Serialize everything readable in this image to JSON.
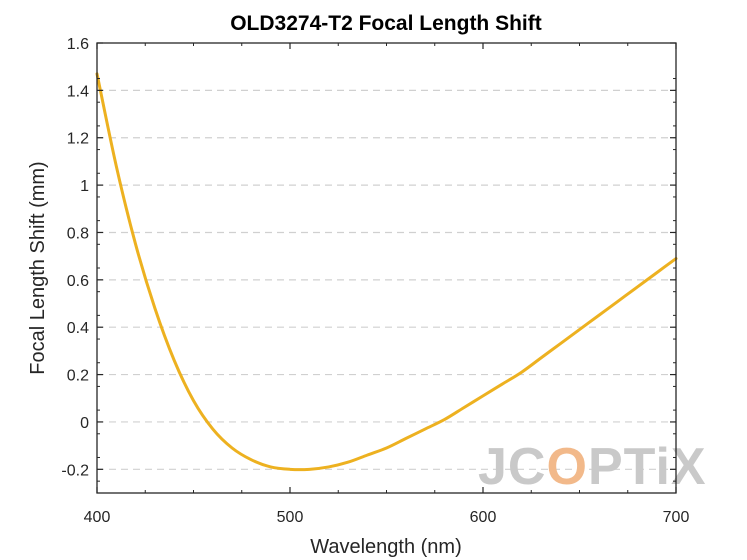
{
  "chart_data": {
    "type": "line",
    "title": "OLD3274-T2 Focal Length Shift",
    "xlabel": "Wavelength (nm)",
    "ylabel": "Focal Length Shift (mm)",
    "xlim": [
      400,
      700
    ],
    "ylim": [
      -0.3,
      1.6
    ],
    "x_ticks": [
      400,
      500,
      600,
      700
    ],
    "x_tick_labels": [
      "400",
      "500",
      "600",
      "700"
    ],
    "y_ticks": [
      -0.2,
      0,
      0.2,
      0.4,
      0.6,
      0.8,
      1,
      1.2,
      1.4,
      1.6
    ],
    "y_tick_labels": [
      "-0.2",
      "0",
      "0.2",
      "0.4",
      "0.6",
      "0.8",
      "1",
      "1.2",
      "1.4",
      "1.6"
    ],
    "grid": "horizontal-dashed",
    "series": [
      {
        "color": "#EDB120",
        "x": [
          400,
          410,
          420,
          430,
          440,
          450,
          460,
          470,
          480,
          490,
          500,
          510,
          520,
          530,
          540,
          550,
          560,
          570,
          580,
          590,
          600,
          610,
          620,
          630,
          640,
          650,
          660,
          670,
          680,
          690,
          700
        ],
        "y": [
          1.47,
          1.08,
          0.75,
          0.48,
          0.26,
          0.09,
          -0.03,
          -0.11,
          -0.16,
          -0.19,
          -0.2,
          -0.2,
          -0.19,
          -0.17,
          -0.14,
          -0.11,
          -0.07,
          -0.03,
          0.01,
          0.06,
          0.11,
          0.16,
          0.21,
          0.27,
          0.33,
          0.39,
          0.45,
          0.51,
          0.57,
          0.63,
          0.69
        ]
      }
    ]
  },
  "watermark": {
    "text_parts": [
      "JC",
      "O",
      "PTiX"
    ],
    "color": "#c9c9c9",
    "accent_color": "#F2B98A"
  }
}
